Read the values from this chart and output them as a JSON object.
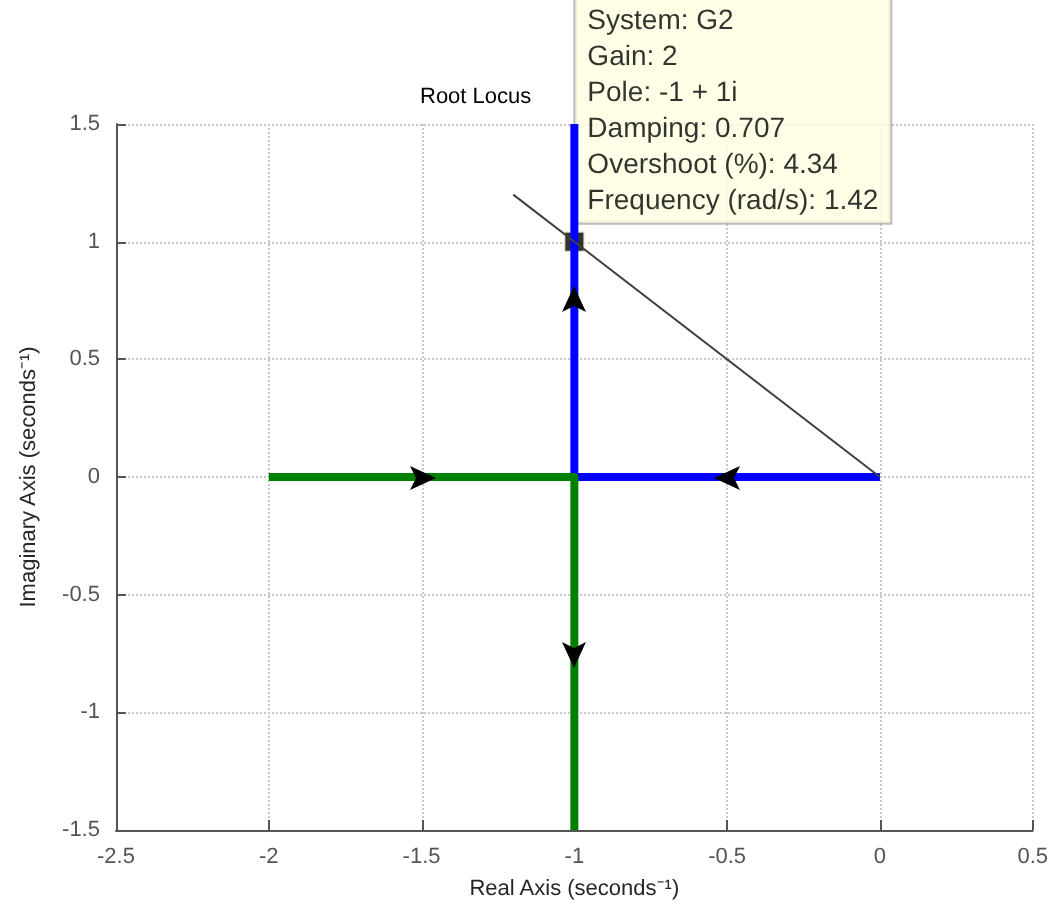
{
  "chart_data": {
    "type": "line",
    "title": "Root Locus",
    "xlabel": "Real Axis (seconds⁻¹)",
    "ylabel": "Imaginary Axis (seconds⁻¹)",
    "xlim": [
      -2.5,
      0.5
    ],
    "xticks": [
      -2.5,
      -2,
      -1.5,
      -1,
      -0.5,
      0,
      0.5
    ],
    "ylim": [
      -1.5,
      1.5
    ],
    "yticks": [
      -1.5,
      -1,
      -0.5,
      0,
      0.5,
      1,
      1.5
    ],
    "grid": true,
    "series": [
      {
        "color": "#0000ff",
        "x": [
          0,
          -1,
          -1
        ],
        "values": [
          0,
          0,
          1.5
        ]
      },
      {
        "color": "#008000",
        "x": [
          -2,
          -1,
          -1
        ],
        "values": [
          0,
          0,
          -1.5
        ]
      },
      {
        "color": "#404040",
        "x": [
          0,
          -1.2
        ],
        "values": [
          0,
          1.2
        ]
      }
    ],
    "annotations": [
      {
        "text": "System: G2\nGain: 2\nPole: -1 + 1i\nDamping: 0.707\nOvershoot (%): 4.34\nFrequency (rad/s): 1.42",
        "x": -1,
        "y": 1
      }
    ]
  }
}
